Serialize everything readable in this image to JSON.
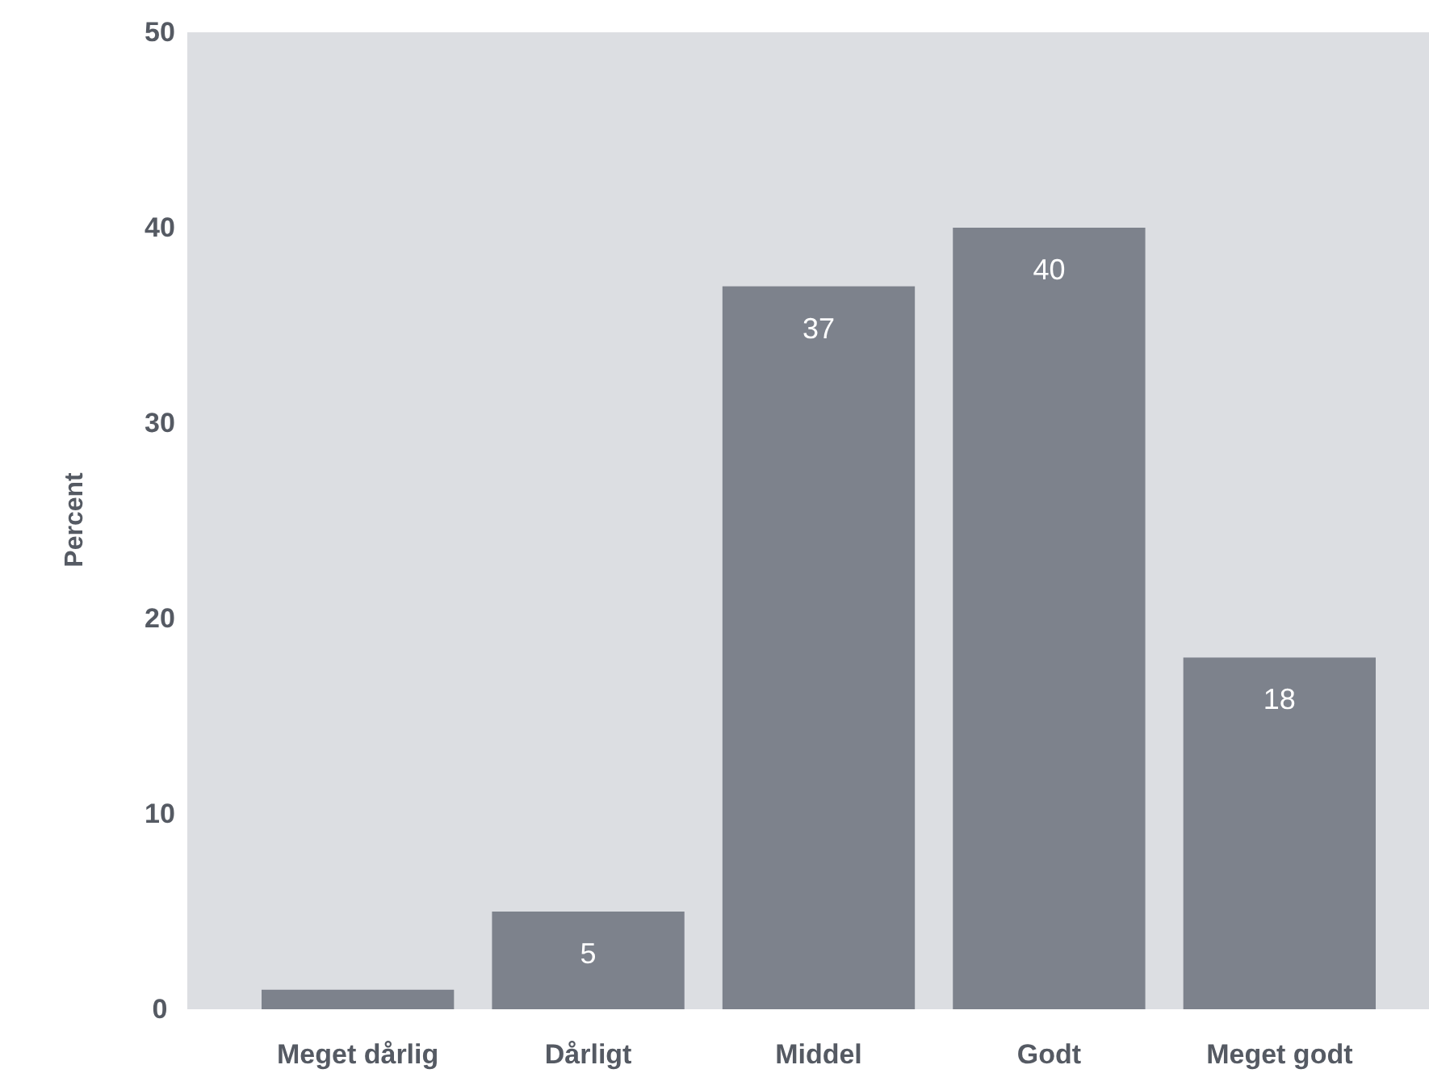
{
  "chart_data": {
    "type": "bar",
    "ylabel": "Percent",
    "categories": [
      "Meget dårlig",
      "Dårligt",
      "Middel",
      "Godt",
      "Meget godt"
    ],
    "values": [
      1,
      5,
      37,
      40,
      18
    ],
    "value_labels": [
      null,
      "5",
      "37",
      "40",
      "18"
    ],
    "color": "#7d828c",
    "ylim": [
      0,
      50
    ],
    "yticks": [
      0,
      10,
      20,
      30,
      40,
      50
    ],
    "grid": false
  }
}
